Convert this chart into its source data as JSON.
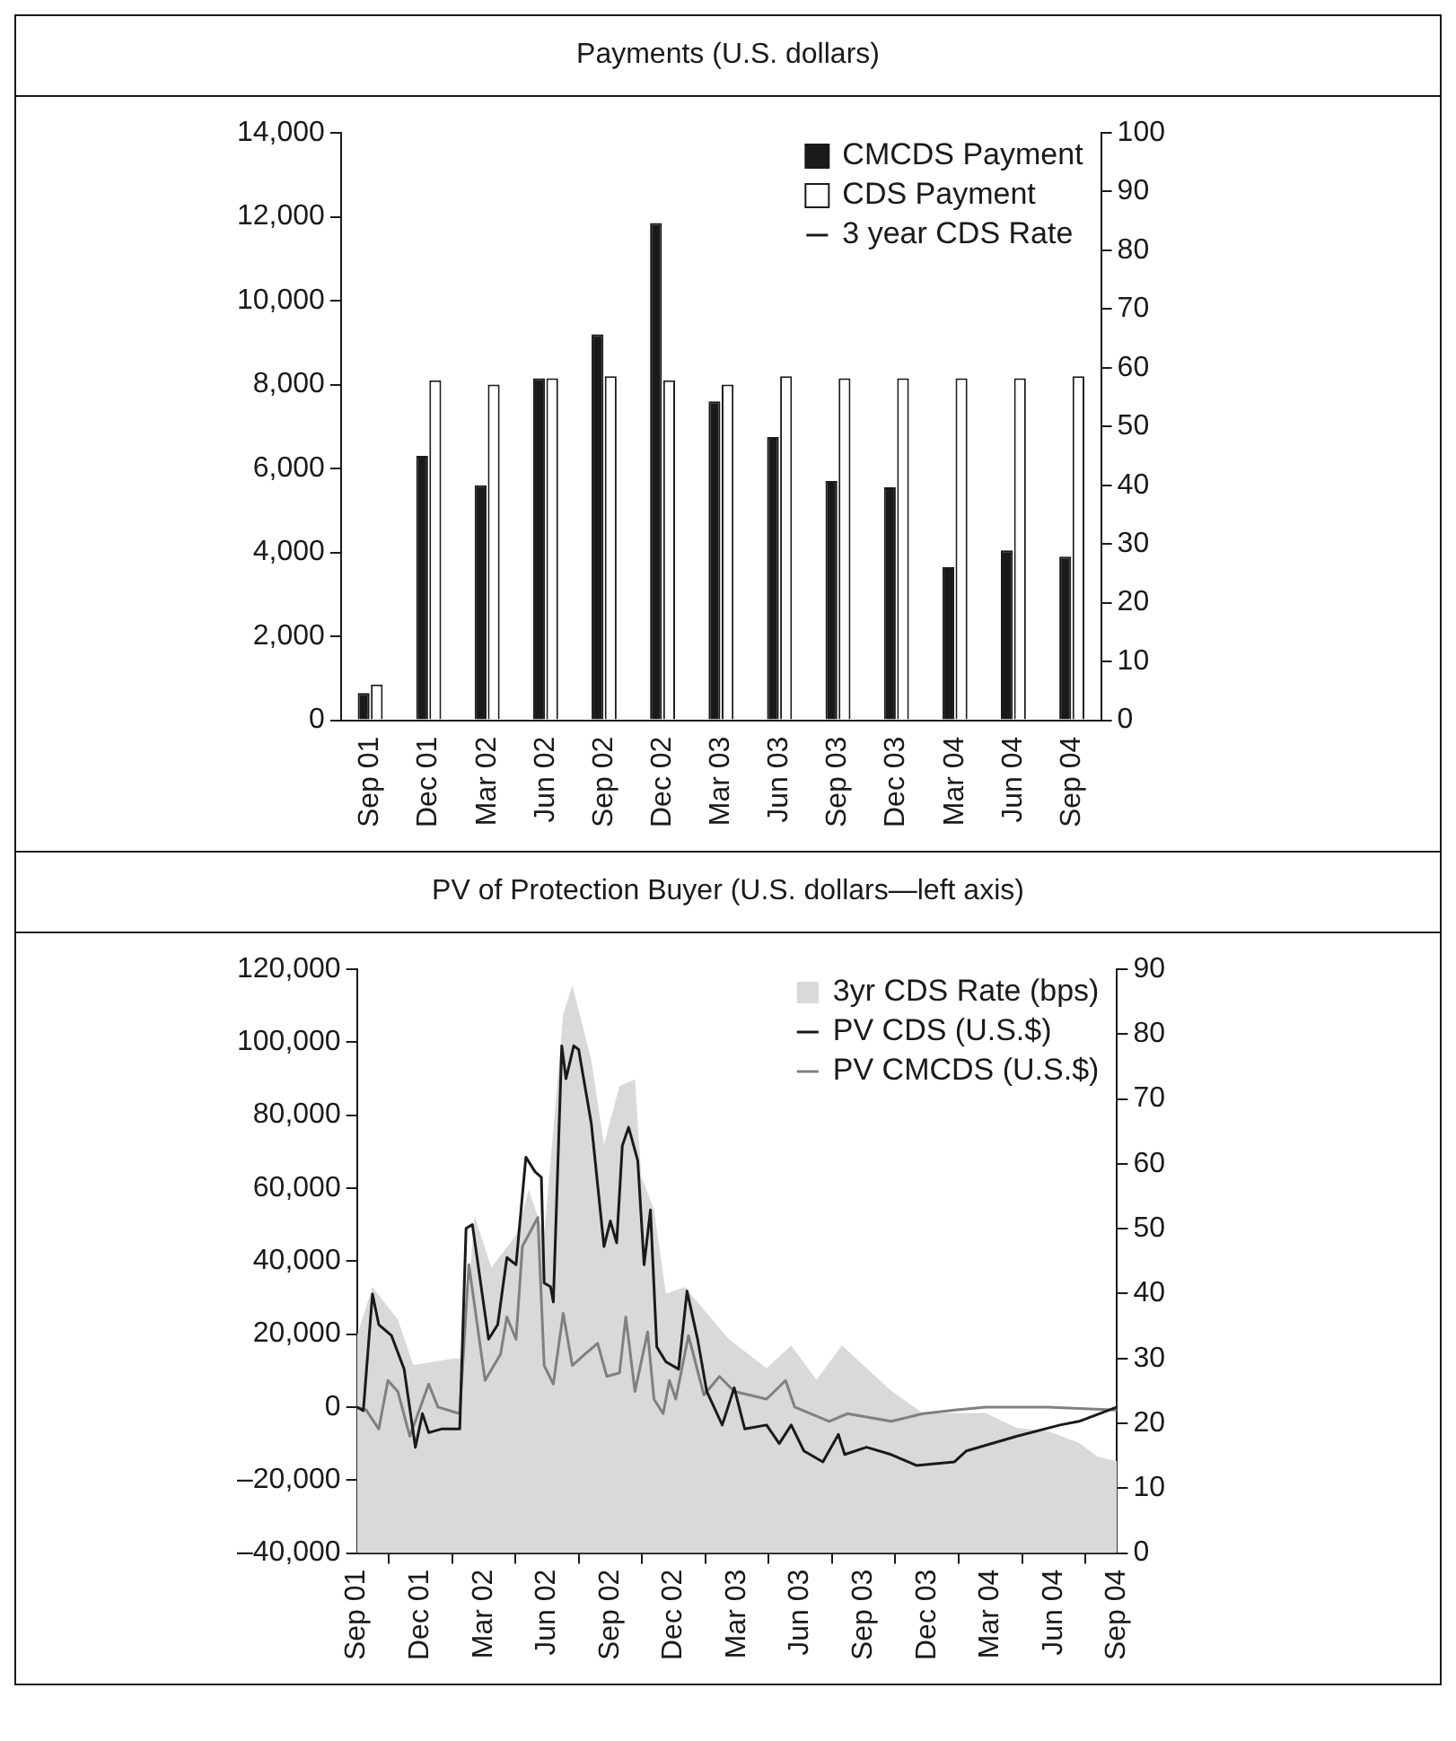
{
  "chart_data": [
    {
      "type": "bar",
      "title": "Payments (U.S. dollars)",
      "categories": [
        "Sep 01",
        "Dec 01",
        "Mar 02",
        "Jun 02",
        "Sep 02",
        "Dec 02",
        "Mar 03",
        "Jun 03",
        "Sep 03",
        "Dec 03",
        "Mar 04",
        "Jun 04",
        "Sep 04"
      ],
      "series": [
        {
          "name": "CMCDS Payment",
          "color": "#1a1a1a",
          "values": [
            650,
            6300,
            5600,
            8150,
            9200,
            11850,
            7600,
            6750,
            5700,
            5550,
            3650,
            4050,
            3900
          ]
        },
        {
          "name": "CDS Payment",
          "color": "#ffffff",
          "values": [
            850,
            8100,
            8000,
            8150,
            8200,
            8100,
            8000,
            8200,
            8150,
            8150,
            8150,
            8150,
            8200
          ]
        },
        {
          "name": "3 year CDS Rate",
          "type": "line",
          "axis": "y2",
          "color": "#1a1a1a",
          "values": [
            null,
            null,
            null,
            null,
            null,
            null,
            null,
            null,
            null,
            null,
            null,
            null,
            null
          ]
        }
      ],
      "ylim": [
        0,
        14000
      ],
      "yticks": [
        0,
        {
          "value": 2000,
          "label": "2,000"
        },
        {
          "value": 4000,
          "label": "4,000"
        },
        {
          "value": 6000,
          "label": "6,000"
        },
        {
          "value": 8000,
          "label": "8,000"
        },
        {
          "value": 10000,
          "label": "10,000"
        },
        {
          "value": 12000,
          "label": "12,000"
        },
        {
          "value": 14000,
          "label": "14,000"
        }
      ],
      "y2lim": [
        0,
        100
      ],
      "y2ticks": [
        0,
        10,
        20,
        30,
        40,
        50,
        60,
        70,
        80,
        90,
        100
      ],
      "legend": "top right",
      "grid": false
    },
    {
      "type": "line",
      "title": "PV of Protection Buyer (U.S. dollars—left axis)",
      "series": [
        {
          "name": "3yr CDS Rate (bps)",
          "type": "area",
          "axis": "y2",
          "color": "#d9d9d9",
          "x": [
            "2001-09-01",
            "2001-09-23",
            "2001-10-29",
            "2001-11-21",
            "2002-01-18",
            "2002-02-02",
            "2002-02-18",
            "2002-03-12",
            "2002-04-17",
            "2002-05-05",
            "2002-05-27",
            "2002-06-24",
            "2002-07-07",
            "2002-08-04",
            "2002-08-22",
            "2002-09-14",
            "2002-10-06",
            "2002-10-15",
            "2002-11-03",
            "2002-11-20",
            "2002-12-17",
            "2003-01-14",
            "2003-02-19",
            "2003-04-13",
            "2003-05-18",
            "2003-06-24",
            "2003-07-30",
            "2003-09-05",
            "2003-10-10",
            "2003-11-25",
            "2004-01-10",
            "2004-02-24",
            "2004-04-08",
            "2004-05-23",
            "2004-07-07",
            "2004-08-04",
            "2004-09-01"
          ],
          "values": [
            33.5,
            41,
            36,
            29,
            30,
            30,
            52,
            44,
            49,
            56,
            49,
            83,
            87.5,
            76,
            63,
            72,
            73,
            58,
            53,
            40,
            41,
            37.5,
            33,
            28.5,
            32,
            26.7,
            32,
            28.5,
            25,
            21.6,
            21.6,
            21.6,
            19.3,
            18.8,
            17,
            14.8,
            14.2
          ]
        },
        {
          "name": "PV CDS (U.S.$)",
          "color": "#1a1a1a",
          "x": [
            "2001-09-01",
            "2001-09-10",
            "2001-09-23",
            "2001-10-02",
            "2001-10-20",
            "2001-11-08",
            "2001-11-24",
            "2001-12-04",
            "2001-12-13",
            "2002-01-01",
            "2002-01-27",
            "2002-02-06",
            "2002-02-15",
            "2002-03-08",
            "2002-03-21",
            "2002-04-04",
            "2002-04-17",
            "2002-05-01",
            "2002-05-14",
            "2002-05-23",
            "2002-05-27",
            "2002-06-06",
            "2002-06-10",
            "2002-06-22",
            "2002-06-28",
            "2002-07-09",
            "2002-07-16",
            "2002-08-04",
            "2002-08-22",
            "2002-09-01",
            "2002-09-10",
            "2002-09-18",
            "2002-09-27",
            "2002-10-10",
            "2002-10-19",
            "2002-10-28",
            "2002-11-07",
            "2002-11-20",
            "2002-12-08",
            "2002-12-20",
            "2003-01-05",
            "2003-01-18",
            "2003-02-10",
            "2003-02-27",
            "2003-03-12",
            "2003-04-13",
            "2003-05-01",
            "2003-05-18",
            "2003-06-06",
            "2003-07-03",
            "2003-07-25",
            "2003-08-04",
            "2003-09-05",
            "2003-10-10",
            "2003-11-16",
            "2004-01-10",
            "2004-01-27",
            "2004-04-08",
            "2004-06-10",
            "2004-07-07",
            "2004-09-01"
          ],
          "values": [
            0,
            -1000,
            31000,
            22600,
            19600,
            10400,
            -11000,
            -1800,
            -7000,
            -6000,
            -6000,
            49000,
            50000,
            18600,
            22600,
            41000,
            39000,
            68500,
            64500,
            63000,
            34000,
            33000,
            28800,
            99000,
            90000,
            99000,
            98000,
            77700,
            44000,
            51000,
            45000,
            71600,
            76700,
            67500,
            39000,
            54000,
            16500,
            12400,
            10400,
            31800,
            18600,
            4300,
            -4900,
            5300,
            -6000,
            -4900,
            -10000,
            -4900,
            -12000,
            -15000,
            -7500,
            -13000,
            -11000,
            -13000,
            -16000,
            -15000,
            -12000,
            -8000,
            -4900,
            -3900,
            0
          ]
        },
        {
          "name": "PV CMCDS (U.S.$)",
          "color": "#808080",
          "x": [
            "2001-09-01",
            "2001-09-14",
            "2001-10-02",
            "2001-10-15",
            "2001-10-29",
            "2001-11-16",
            "2001-12-13",
            "2001-12-26",
            "2002-01-27",
            "2002-02-10",
            "2002-03-03",
            "2002-03-25",
            "2002-04-04",
            "2002-04-17",
            "2002-04-26",
            "2002-05-18",
            "2002-05-27",
            "2002-06-10",
            "2002-06-24",
            "2002-07-07",
            "2002-07-25",
            "2002-08-13",
            "2002-08-26",
            "2002-09-14",
            "2002-09-23",
            "2002-10-06",
            "2002-10-24",
            "2002-11-03",
            "2002-11-16",
            "2002-11-25",
            "2002-12-04",
            "2002-12-22",
            "2003-01-14",
            "2003-02-06",
            "2003-02-27",
            "2003-04-13",
            "2003-05-10",
            "2003-05-23",
            "2003-07-12",
            "2003-08-08",
            "2003-10-10",
            "2003-11-25",
            "2004-01-10",
            "2004-02-24",
            "2004-05-23",
            "2004-09-01"
          ],
          "values": [
            0,
            -800,
            -6000,
            7300,
            4300,
            -8000,
            6300,
            0,
            -1800,
            39000,
            7300,
            14500,
            24700,
            18600,
            44000,
            52000,
            11400,
            6300,
            25700,
            11400,
            14500,
            17500,
            8400,
            9400,
            24700,
            4300,
            20600,
            2200,
            -1800,
            7300,
            2200,
            19600,
            3300,
            8400,
            4300,
            2200,
            7300,
            0,
            -3900,
            -1800,
            -3900,
            -1800,
            -800,
            0,
            0,
            -800
          ]
        }
      ],
      "xlim": [
        "2001-09-01",
        "2004-09-01"
      ],
      "xticks": [
        {
          "value": "2001-09-01",
          "label": "Sep 01"
        },
        {
          "value": "2001-12-01",
          "label": "Dec 01"
        },
        {
          "value": "2002-03-01",
          "label": "Mar 02"
        },
        {
          "value": "2002-06-01",
          "label": "Jun 02"
        },
        {
          "value": "2002-09-01",
          "label": "Sep 02"
        },
        {
          "value": "2002-12-01",
          "label": "Dec 02"
        },
        {
          "value": "2003-03-01",
          "label": "Mar 03"
        },
        {
          "value": "2003-06-01",
          "label": "Jun 03"
        },
        {
          "value": "2003-09-01",
          "label": "Sep 03"
        },
        {
          "value": "2003-12-01",
          "label": "Dec 03"
        },
        {
          "value": "2004-03-01",
          "label": "Mar 04"
        },
        {
          "value": "2004-06-01",
          "label": "Jun 04"
        },
        {
          "value": "2004-09-01",
          "label": "Sep 04"
        }
      ],
      "ylim": [
        -40000,
        120000
      ],
      "yticks": [
        {
          "value": -40000,
          "label": "–40,000"
        },
        {
          "value": -20000,
          "label": "–20,000"
        },
        0,
        {
          "value": 20000,
          "label": "20,000"
        },
        {
          "value": 40000,
          "label": "40,000"
        },
        {
          "value": 60000,
          "label": "60,000"
        },
        {
          "value": 80000,
          "label": "80,000"
        },
        {
          "value": 100000,
          "label": "100,000"
        },
        {
          "value": 120000,
          "label": "120,000"
        }
      ],
      "y2lim": [
        0,
        90
      ],
      "y2ticks": [
        0,
        10,
        20,
        30,
        40,
        50,
        60,
        70,
        80,
        90
      ],
      "legend": "top right",
      "grid": false,
      "marker": "none"
    }
  ]
}
